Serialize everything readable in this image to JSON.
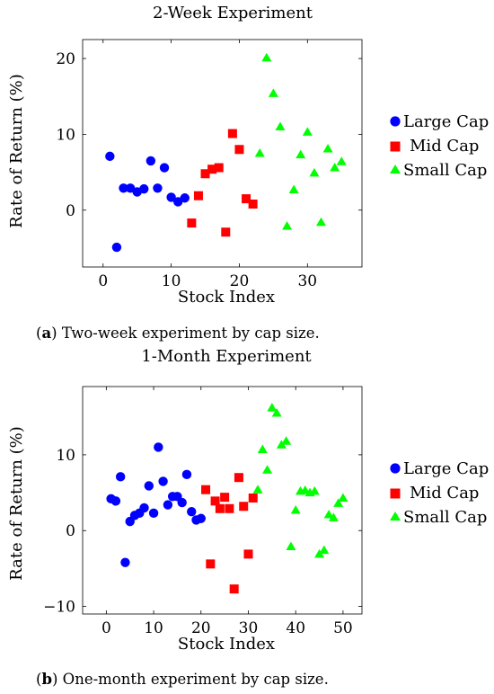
{
  "colors": {
    "large": "#0000ff",
    "mid": "#ff0000",
    "small": "#00ff00"
  },
  "captions": [
    {
      "letter": "a",
      "text": "Two-week experiment by cap size."
    },
    {
      "letter": "b",
      "text": "One-month experiment by cap size."
    }
  ],
  "chart_data": [
    {
      "type": "scatter",
      "title": "2-Week Experiment",
      "xlabel": "Stock Index",
      "ylabel": "Rate of Return (%)",
      "xlim": [
        -3,
        38
      ],
      "ylim": [
        -7.5,
        22.5
      ],
      "xticks": [
        0,
        10,
        20,
        30
      ],
      "yticks": [
        0,
        10,
        20
      ],
      "legend": "right-outside",
      "series": [
        {
          "name": "Large Cap",
          "marker": "circle",
          "color": "#0000ff",
          "points": [
            [
              1,
              7.1
            ],
            [
              2,
              -4.9
            ],
            [
              3,
              2.9
            ],
            [
              4,
              2.9
            ],
            [
              5,
              2.4
            ],
            [
              6,
              2.8
            ],
            [
              7,
              6.5
            ],
            [
              8,
              2.9
            ],
            [
              9,
              5.6
            ],
            [
              10,
              1.7
            ],
            [
              11,
              1.1
            ],
            [
              12,
              1.6
            ]
          ]
        },
        {
          "name": "Mid Cap",
          "marker": "square",
          "color": "#ff0000",
          "points": [
            [
              13,
              -1.7
            ],
            [
              14,
              1.9
            ],
            [
              15,
              4.8
            ],
            [
              16,
              5.4
            ],
            [
              17,
              5.6
            ],
            [
              18,
              -2.9
            ],
            [
              19,
              10.1
            ],
            [
              20,
              8.0
            ],
            [
              21,
              1.5
            ],
            [
              22,
              0.8
            ]
          ]
        },
        {
          "name": "Small Cap",
          "marker": "triangle",
          "color": "#00ff00",
          "points": [
            [
              23,
              7.5
            ],
            [
              24,
              20.1
            ],
            [
              25,
              15.4
            ],
            [
              26,
              11.0
            ],
            [
              27,
              -2.1
            ],
            [
              28,
              2.7
            ],
            [
              29,
              7.3
            ],
            [
              30,
              10.3
            ],
            [
              31,
              4.9
            ],
            [
              32,
              -1.6
            ],
            [
              33,
              8.1
            ],
            [
              34,
              5.6
            ],
            [
              35,
              6.4
            ]
          ]
        }
      ]
    },
    {
      "type": "scatter",
      "title": "1-Month Experiment",
      "xlabel": "Stock Index",
      "ylabel": "Rate of Return (%)",
      "xlim": [
        -5,
        54
      ],
      "ylim": [
        -11,
        19
      ],
      "xticks": [
        0,
        10,
        20,
        30,
        40,
        50
      ],
      "yticks": [
        -10,
        0,
        10
      ],
      "legend": "right-outside",
      "series": [
        {
          "name": "Large Cap",
          "marker": "circle",
          "color": "#0000ff",
          "points": [
            [
              1,
              4.2
            ],
            [
              2,
              3.9
            ],
            [
              3,
              7.1
            ],
            [
              4,
              -4.2
            ],
            [
              5,
              1.2
            ],
            [
              6,
              2.0
            ],
            [
              7,
              2.3
            ],
            [
              8,
              3.0
            ],
            [
              9,
              5.9
            ],
            [
              10,
              2.3
            ],
            [
              11,
              11.0
            ],
            [
              12,
              6.5
            ],
            [
              13,
              3.4
            ],
            [
              14,
              4.5
            ],
            [
              15,
              4.5
            ],
            [
              16,
              3.7
            ],
            [
              17,
              7.4
            ],
            [
              18,
              2.5
            ],
            [
              19,
              1.4
            ],
            [
              20,
              1.6
            ]
          ]
        },
        {
          "name": "Mid Cap",
          "marker": "square",
          "color": "#ff0000",
          "points": [
            [
              21,
              5.4
            ],
            [
              22,
              -4.4
            ],
            [
              23,
              3.9
            ],
            [
              24,
              2.9
            ],
            [
              25,
              4.4
            ],
            [
              26,
              2.9
            ],
            [
              27,
              -7.7
            ],
            [
              28,
              7.0
            ],
            [
              29,
              3.2
            ],
            [
              30,
              -3.1
            ],
            [
              31,
              4.3
            ]
          ]
        },
        {
          "name": "Small Cap",
          "marker": "triangle",
          "color": "#00ff00",
          "points": [
            [
              32,
              5.4
            ],
            [
              33,
              10.7
            ],
            [
              34,
              8.0
            ],
            [
              35,
              16.2
            ],
            [
              36,
              15.5
            ],
            [
              37,
              11.3
            ],
            [
              38,
              11.8
            ],
            [
              39,
              -2.1
            ],
            [
              40,
              2.7
            ],
            [
              41,
              5.2
            ],
            [
              42,
              5.3
            ],
            [
              43,
              5.0
            ],
            [
              44,
              5.2
            ],
            [
              45,
              -3.1
            ],
            [
              46,
              -2.6
            ],
            [
              47,
              2.1
            ],
            [
              48,
              1.7
            ],
            [
              49,
              3.6
            ],
            [
              50,
              4.3
            ]
          ]
        }
      ]
    }
  ]
}
